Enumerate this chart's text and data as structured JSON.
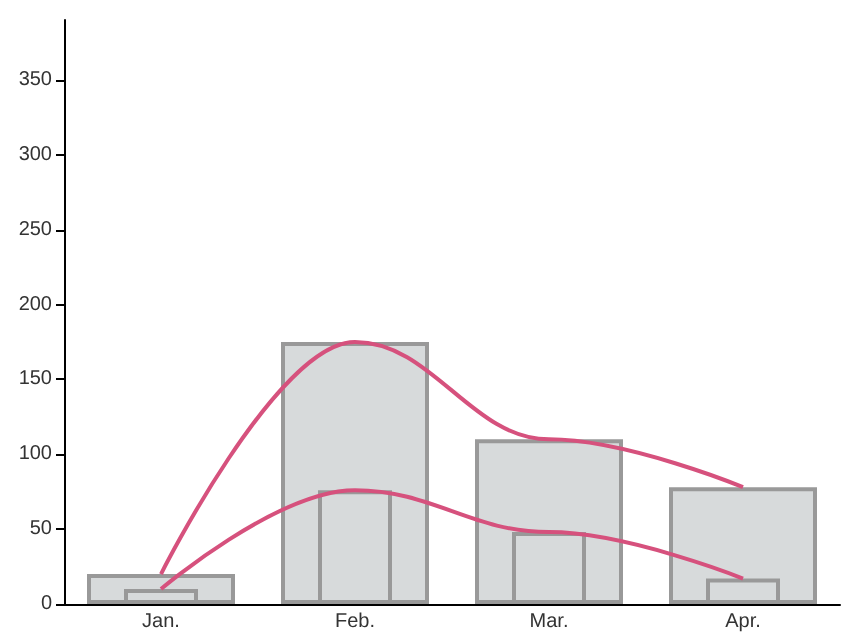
{
  "chart_data": {
    "type": "bar",
    "categories": [
      "Jan.",
      "Feb.",
      "Mar.",
      "Apr."
    ],
    "series": [
      {
        "color": "#d7dadb",
        "values": [
          20,
          175,
          110,
          78
        ]
      },
      {
        "color": "#d7dadb",
        "values": [
          10,
          76,
          48,
          17
        ]
      },
      {
        "type": "line",
        "color": "#d6517d",
        "values": [
          20,
          175,
          110,
          78
        ]
      },
      {
        "type": "line",
        "color": "#d6517d",
        "values": [
          10,
          76,
          48,
          17
        ]
      }
    ],
    "ylim": [
      0,
      390
    ],
    "yticks": [
      0,
      50,
      100,
      150,
      200,
      250,
      300,
      350
    ],
    "grid": false,
    "marker": "none",
    "line_style": "solid"
  }
}
